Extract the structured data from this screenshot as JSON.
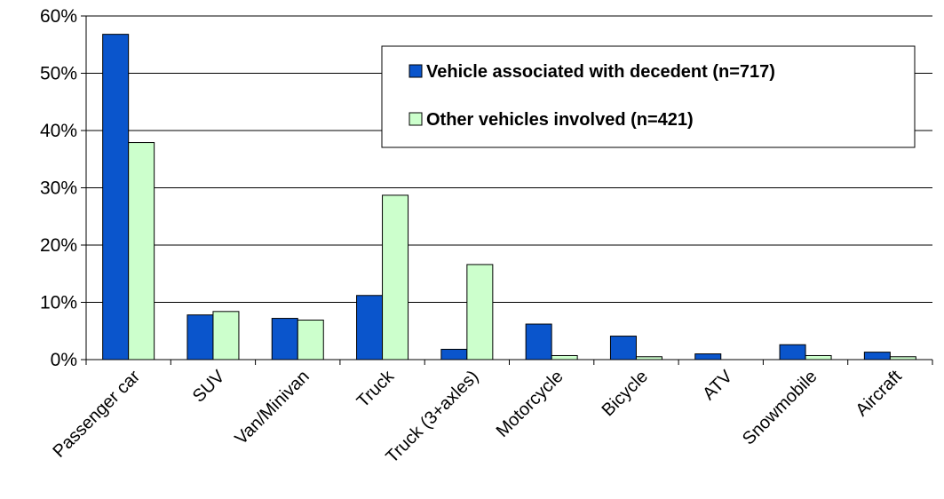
{
  "chart_data": {
    "type": "bar",
    "title": "",
    "xlabel": "",
    "ylabel": "",
    "categories": [
      "Passenger car",
      "SUV",
      "Van/Minivan",
      "Truck",
      "Truck (3+axles)",
      "Motorcycle",
      "Bicycle",
      "ATV",
      "Snowmobile",
      "Aircraft"
    ],
    "series": [
      {
        "name": "Vehicle associated with decedent (n=717)",
        "color": "#0a55cc",
        "values": [
          56.8,
          7.8,
          7.2,
          11.2,
          1.8,
          6.2,
          4.1,
          1.0,
          2.6,
          1.3
        ]
      },
      {
        "name": "Other vehicles involved (n=421)",
        "color": "#ccffcc",
        "values": [
          37.9,
          8.4,
          6.9,
          28.7,
          16.6,
          0.7,
          0.5,
          0,
          0.7,
          0.5
        ]
      }
    ],
    "ylim": [
      0,
      60
    ],
    "yticks": [
      "0%",
      "10%",
      "20%",
      "30%",
      "40%",
      "50%",
      "60%"
    ],
    "grid": true,
    "legend_position": "top-right"
  }
}
